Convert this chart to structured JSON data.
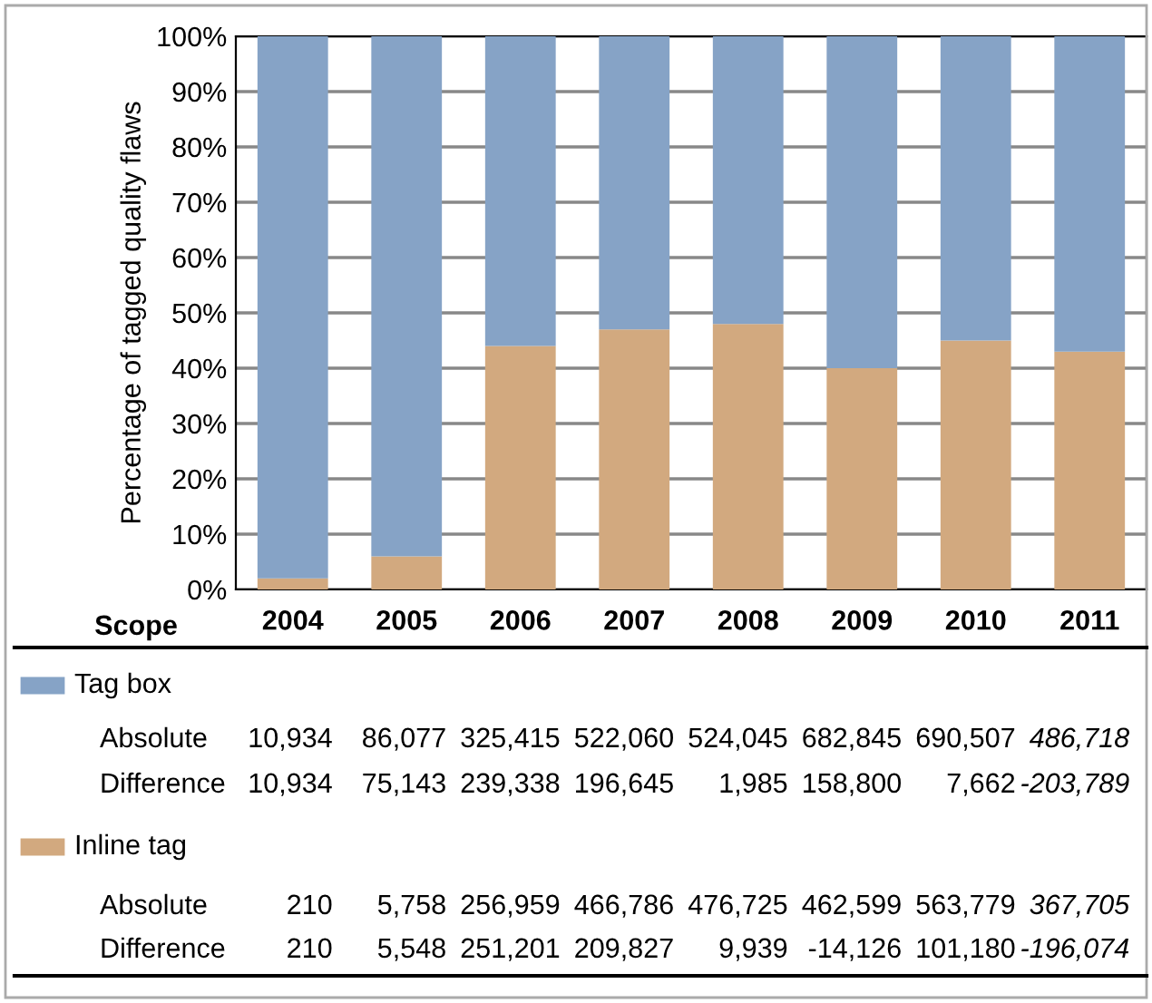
{
  "chart_data": {
    "type": "bar",
    "stacked": true,
    "ylabel": "Percentage of tagged quality flaws",
    "xlabel": "Scope",
    "categories": [
      "2004",
      "2005",
      "2006",
      "2007",
      "2008",
      "2009",
      "2010",
      "2011"
    ],
    "series": [
      {
        "name": "Inline tag",
        "color": "#d2a97f",
        "values": [
          2,
          6,
          44,
          47,
          48,
          40,
          45,
          43
        ]
      },
      {
        "name": "Tag box",
        "color": "#86a3c6",
        "values": [
          98,
          94,
          56,
          53,
          52,
          60,
          55,
          57
        ]
      }
    ],
    "ylim": [
      0,
      100
    ],
    "yticks": [
      {
        "value": 0,
        "label": "0%"
      },
      {
        "value": 10,
        "label": "10%"
      },
      {
        "value": 20,
        "label": "20%"
      },
      {
        "value": 30,
        "label": "30%"
      },
      {
        "value": 40,
        "label": "40%"
      },
      {
        "value": 50,
        "label": "50%"
      },
      {
        "value": 60,
        "label": "60%"
      },
      {
        "value": 70,
        "label": "70%"
      },
      {
        "value": 80,
        "label": "80%"
      },
      {
        "value": 90,
        "label": "90%"
      },
      {
        "value": 100,
        "label": "100%"
      }
    ],
    "grid": "y",
    "legend": "bottom",
    "annotations": [
      "Absolute",
      "10,934",
      "86,077",
      "325,415",
      "522,060",
      "524,045",
      "682,845",
      "690,507",
      "486,718",
      "Difference",
      "10,934",
      "75,143",
      "239,338",
      "196,645",
      "1,985",
      "158,800",
      "7,662",
      "-203,789",
      "Absolute",
      "210",
      "5,758",
      "256,959",
      "466,786",
      "476,725",
      "462,599",
      "563,779",
      "367,705",
      "Difference",
      "210",
      "5,548",
      "251,201",
      "209,827",
      "9,939",
      "-14,126",
      "101,180",
      "-196,074"
    ]
  }
}
